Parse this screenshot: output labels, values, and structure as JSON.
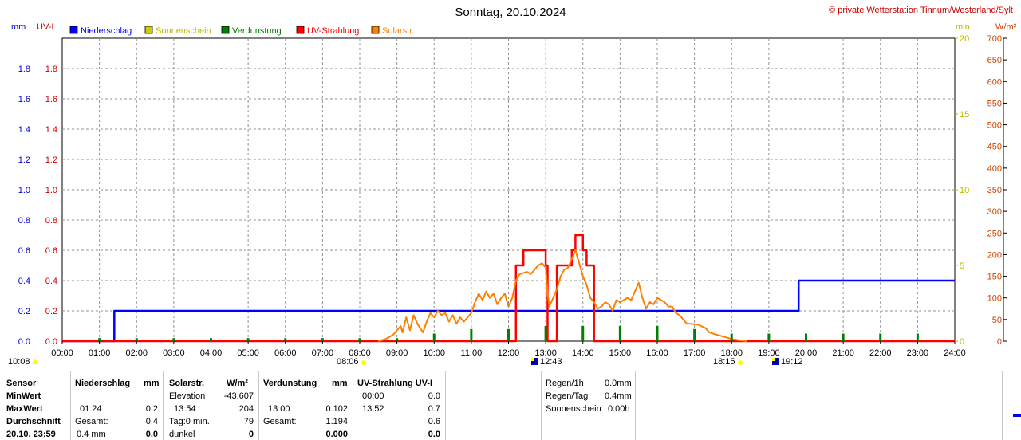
{
  "chart_data": {
    "type": "line",
    "title": "Sonntag, 20.10.2024",
    "copyright": "© private Wetterstation Tinnum/Westerland/Sylt",
    "legend": [
      {
        "name": "Niederschlag",
        "color": "#0000ff"
      },
      {
        "name": "Sonnenschein",
        "color": "#cccc00"
      },
      {
        "name": "Verdunstung",
        "color": "#008000"
      },
      {
        "name": "UV-Strahlung",
        "color": "#ff0000"
      },
      {
        "name": "Solarstr.",
        "color": "#ff8000"
      }
    ],
    "legend_placement": "top-left",
    "grid": true,
    "axes": {
      "left_unit_1": "mm",
      "left_unit_2": "UV-I",
      "right_unit_1": "min",
      "right_unit_2": "W/m²",
      "left_ticks": [
        "0.0",
        "0.2",
        "0.4",
        "0.6",
        "0.8",
        "1.0",
        "1.2",
        "1.4",
        "1.6",
        "1.8"
      ],
      "min_ticks": [
        "0",
        "5",
        "10",
        "15",
        "20"
      ],
      "wm2_ticks": [
        "0",
        "50",
        "100",
        "150",
        "200",
        "250",
        "300",
        "350",
        "400",
        "450",
        "500",
        "550",
        "600",
        "650",
        "700"
      ],
      "x_ticks": [
        "00:00",
        "01:00",
        "02:00",
        "03:00",
        "04:00",
        "05:00",
        "06:00",
        "07:00",
        "08:00",
        "09:00",
        "10:00",
        "11:00",
        "12:00",
        "13:00",
        "14:00",
        "15:00",
        "16:00",
        "17:00",
        "18:00",
        "19:00",
        "20:00",
        "21:00",
        "22:00",
        "23:00",
        "24:00"
      ],
      "xlim": [
        0,
        24
      ],
      "ylim_mm": [
        0,
        2.0
      ],
      "ylim_min": [
        0,
        20
      ],
      "ylim_wm2": [
        0,
        700
      ]
    },
    "markers": {
      "first_time": "10:08",
      "sunrise": "08:06",
      "uv_max_time": "12:43",
      "sunset": "18:15",
      "last_time": "19:12"
    },
    "series": [
      {
        "name": "Niederschlag",
        "axis": "mm",
        "color": "#0000ff",
        "step": true,
        "points": [
          [
            0,
            0
          ],
          [
            1.4,
            0
          ],
          [
            1.4,
            0.2
          ],
          [
            19.8,
            0.2
          ],
          [
            19.8,
            0.4
          ],
          [
            24,
            0.4
          ]
        ]
      },
      {
        "name": "UV-Strahlung",
        "axis": "mm",
        "color": "#ff0000",
        "step": true,
        "points": [
          [
            0,
            0
          ],
          [
            12.2,
            0
          ],
          [
            12.2,
            0.5
          ],
          [
            12.4,
            0.5
          ],
          [
            12.4,
            0.6
          ],
          [
            13.0,
            0.6
          ],
          [
            13.0,
            0.5
          ],
          [
            13.05,
            0.5
          ],
          [
            13.05,
            0
          ],
          [
            13.3,
            0
          ],
          [
            13.3,
            0.5
          ],
          [
            13.7,
            0.5
          ],
          [
            13.7,
            0.6
          ],
          [
            13.8,
            0.6
          ],
          [
            13.8,
            0.7
          ],
          [
            14.0,
            0.7
          ],
          [
            14.0,
            0.6
          ],
          [
            14.1,
            0.6
          ],
          [
            14.1,
            0.5
          ],
          [
            14.3,
            0.5
          ],
          [
            14.3,
            0
          ],
          [
            24,
            0
          ]
        ]
      },
      {
        "name": "Solarstr.",
        "axis": "wm2",
        "color": "#ff8000",
        "step": false,
        "points": [
          [
            8.5,
            0
          ],
          [
            8.7,
            5
          ],
          [
            8.9,
            15
          ],
          [
            9.0,
            25
          ],
          [
            9.1,
            35
          ],
          [
            9.15,
            20
          ],
          [
            9.25,
            55
          ],
          [
            9.35,
            25
          ],
          [
            9.45,
            60
          ],
          [
            9.55,
            40
          ],
          [
            9.7,
            20
          ],
          [
            9.8,
            45
          ],
          [
            9.9,
            65
          ],
          [
            10.0,
            55
          ],
          [
            10.1,
            70
          ],
          [
            10.2,
            60
          ],
          [
            10.3,
            65
          ],
          [
            10.4,
            45
          ],
          [
            10.5,
            60
          ],
          [
            10.6,
            40
          ],
          [
            10.7,
            55
          ],
          [
            10.8,
            45
          ],
          [
            11.0,
            65
          ],
          [
            11.1,
            90
          ],
          [
            11.2,
            110
          ],
          [
            11.3,
            95
          ],
          [
            11.4,
            115
          ],
          [
            11.5,
            100
          ],
          [
            11.6,
            110
          ],
          [
            11.7,
            85
          ],
          [
            11.8,
            100
          ],
          [
            11.9,
            110
          ],
          [
            12.0,
            80
          ],
          [
            12.1,
            100
          ],
          [
            12.2,
            140
          ],
          [
            12.3,
            155
          ],
          [
            12.5,
            160
          ],
          [
            12.6,
            155
          ],
          [
            12.7,
            165
          ],
          [
            12.8,
            175
          ],
          [
            12.9,
            180
          ],
          [
            13.0,
            170
          ],
          [
            13.05,
            110
          ],
          [
            13.1,
            80
          ],
          [
            13.2,
            100
          ],
          [
            13.3,
            120
          ],
          [
            13.4,
            150
          ],
          [
            13.5,
            165
          ],
          [
            13.6,
            170
          ],
          [
            13.7,
            190
          ],
          [
            13.8,
            210
          ],
          [
            13.9,
            180
          ],
          [
            14.0,
            150
          ],
          [
            14.1,
            130
          ],
          [
            14.2,
            100
          ],
          [
            14.3,
            90
          ],
          [
            14.4,
            75
          ],
          [
            14.5,
            80
          ],
          [
            14.6,
            90
          ],
          [
            14.7,
            85
          ],
          [
            14.8,
            70
          ],
          [
            14.9,
            95
          ],
          [
            15.0,
            90
          ],
          [
            15.1,
            95
          ],
          [
            15.2,
            100
          ],
          [
            15.3,
            95
          ],
          [
            15.4,
            115
          ],
          [
            15.5,
            135
          ],
          [
            15.6,
            100
          ],
          [
            15.7,
            75
          ],
          [
            15.8,
            90
          ],
          [
            15.9,
            85
          ],
          [
            16.0,
            100
          ],
          [
            16.1,
            95
          ],
          [
            16.2,
            90
          ],
          [
            16.3,
            80
          ],
          [
            16.4,
            80
          ],
          [
            16.5,
            65
          ],
          [
            16.6,
            60
          ],
          [
            16.7,
            50
          ],
          [
            16.8,
            40
          ],
          [
            16.9,
            40
          ],
          [
            17.1,
            38
          ],
          [
            17.3,
            30
          ],
          [
            17.4,
            20
          ],
          [
            17.6,
            15
          ],
          [
            17.8,
            10
          ],
          [
            18.0,
            5
          ],
          [
            18.2,
            2
          ],
          [
            18.4,
            0
          ]
        ]
      },
      {
        "name": "Verdunstung",
        "axis": "mm",
        "color": "#008000",
        "bars": true,
        "points": [
          [
            1.0,
            0.02
          ],
          [
            2.0,
            0.02
          ],
          [
            3.0,
            0.02
          ],
          [
            4.0,
            0.02
          ],
          [
            5.0,
            0.02
          ],
          [
            6.0,
            0.02
          ],
          [
            7.0,
            0.02
          ],
          [
            8.0,
            0.02
          ],
          [
            9.0,
            0.02
          ],
          [
            10.0,
            0.05
          ],
          [
            11.0,
            0.08
          ],
          [
            12.0,
            0.08
          ],
          [
            13.0,
            0.1
          ],
          [
            14.0,
            0.1
          ],
          [
            15.0,
            0.1
          ],
          [
            16.0,
            0.1
          ],
          [
            17.0,
            0.08
          ],
          [
            18.0,
            0.05
          ],
          [
            19.0,
            0.05
          ],
          [
            20.0,
            0.05
          ],
          [
            21.0,
            0.05
          ],
          [
            22.0,
            0.05
          ],
          [
            23.0,
            0.05
          ]
        ]
      }
    ]
  },
  "table": {
    "sensor": {
      "title": "Sensor",
      "min": "MinWert",
      "max": "MaxWert",
      "avg": "Durchschnitt",
      "date": "20.10. 23:59"
    },
    "rain": {
      "title": "Niederschlag",
      "unit": "mm",
      "max_time": "01:24",
      "max_val": "0.2",
      "total_label": "Gesamt:",
      "total_val": "0.4",
      "now": "0.4 mm",
      "now_val": "0.0"
    },
    "solar": {
      "title": "Solarstr.",
      "unit": "W/m²",
      "elev_label": "Elevation",
      "elev_val": "-43.607",
      "max_time": "13:54",
      "max_val": "204",
      "tag_label": "Tag:0 min.",
      "tag_val": "79",
      "dark_label": "dunkel",
      "dark_val": "0"
    },
    "evap": {
      "title": "Verdunstung",
      "unit": "mm",
      "max_time": "13:00",
      "max_val": "0.102",
      "total_label": "Gesamt:",
      "total_val": "1.194",
      "now_val": "0.000"
    },
    "uv": {
      "title": "UV-Strahlung UV-I",
      "min_time": "00:00",
      "min_val": "0.0",
      "max_time": "13:52",
      "max_val": "0.7",
      "avg_val": "0.6",
      "now_val": "0.0"
    },
    "extra": {
      "rain_h_label": "Regen/1h",
      "rain_h_val": "0.0mm",
      "rain_d_label": "Regen/Tag",
      "rain_d_val": "0.4mm",
      "sun_label": "Sonnenschein",
      "sun_val": "0:00h"
    }
  }
}
